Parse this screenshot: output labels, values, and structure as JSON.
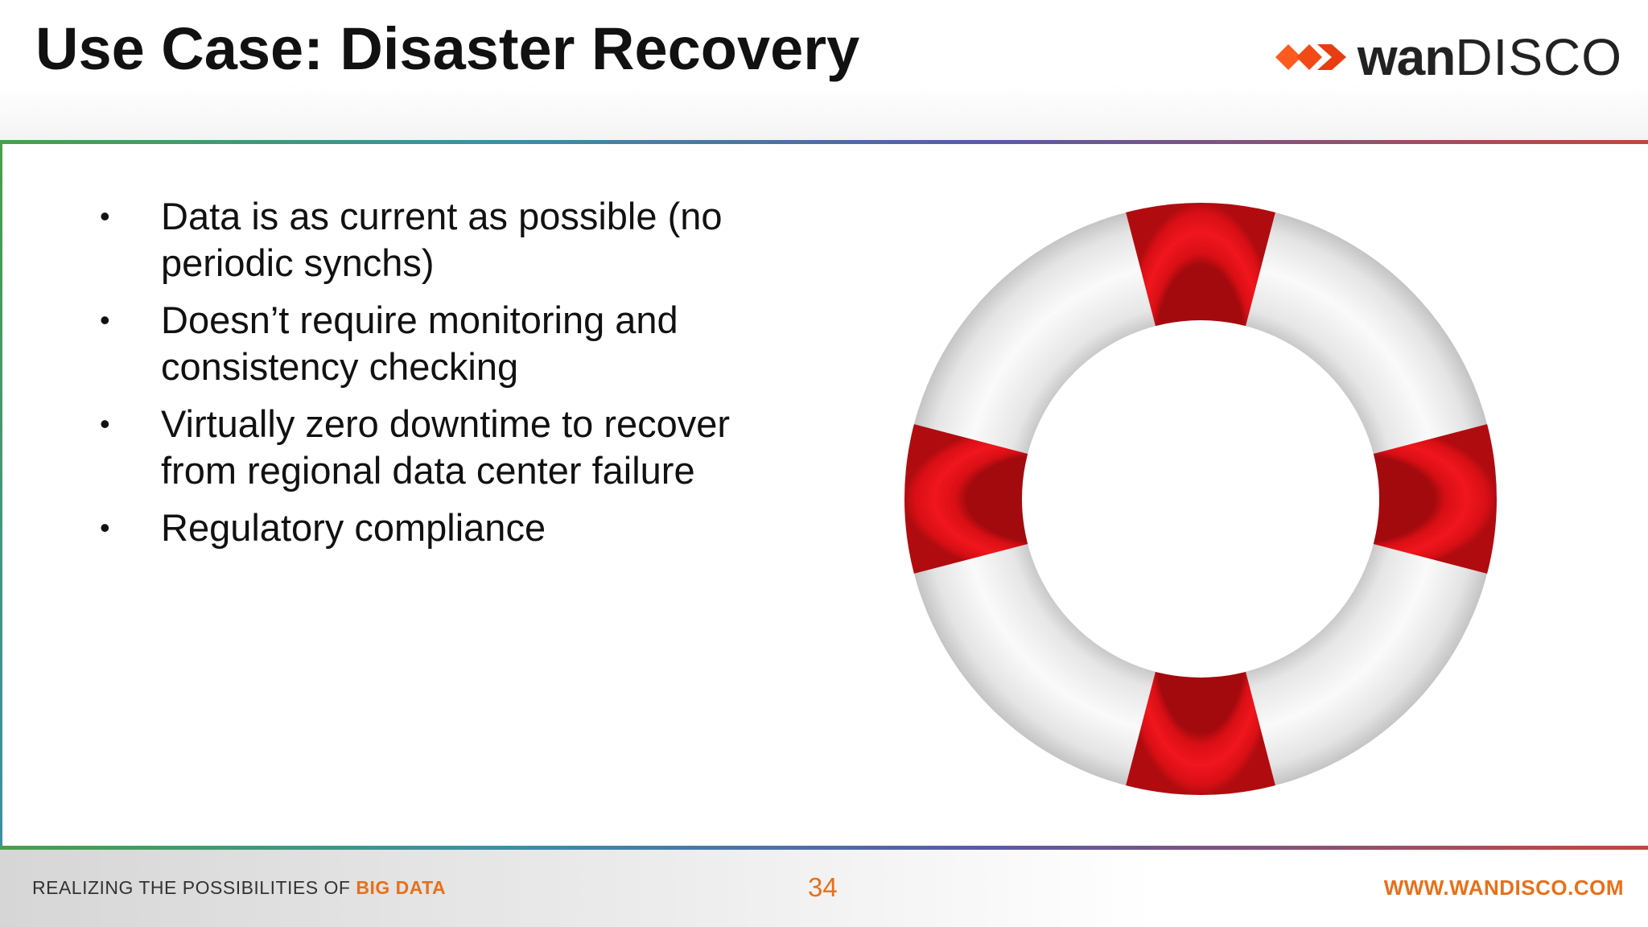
{
  "slide": {
    "title": "Use Case: Disaster Recovery",
    "logo": {
      "text_bold": "wan",
      "text_light": "DISCO",
      "icon": "wandisco-chevrons-icon"
    },
    "bullets": [
      "Data is as current as possible (no periodic synchs)",
      "Doesn’t require monitoring and consistency checking",
      "Virtually zero downtime to recover from regional data center failure",
      "Regulatory compliance"
    ],
    "image": {
      "icon": "life-ring-icon",
      "colors": {
        "ring": "#f2f2f2",
        "bands": "#e30f16"
      }
    }
  },
  "footer": {
    "tagline_prefix": "REALIZING THE POSSIBILITIES OF ",
    "tagline_emphasis": "BIG DATA",
    "page_number": "34",
    "website": "WWW.WANDISCO.COM"
  },
  "colors": {
    "accent": "#e8701a",
    "title": "#111111"
  }
}
